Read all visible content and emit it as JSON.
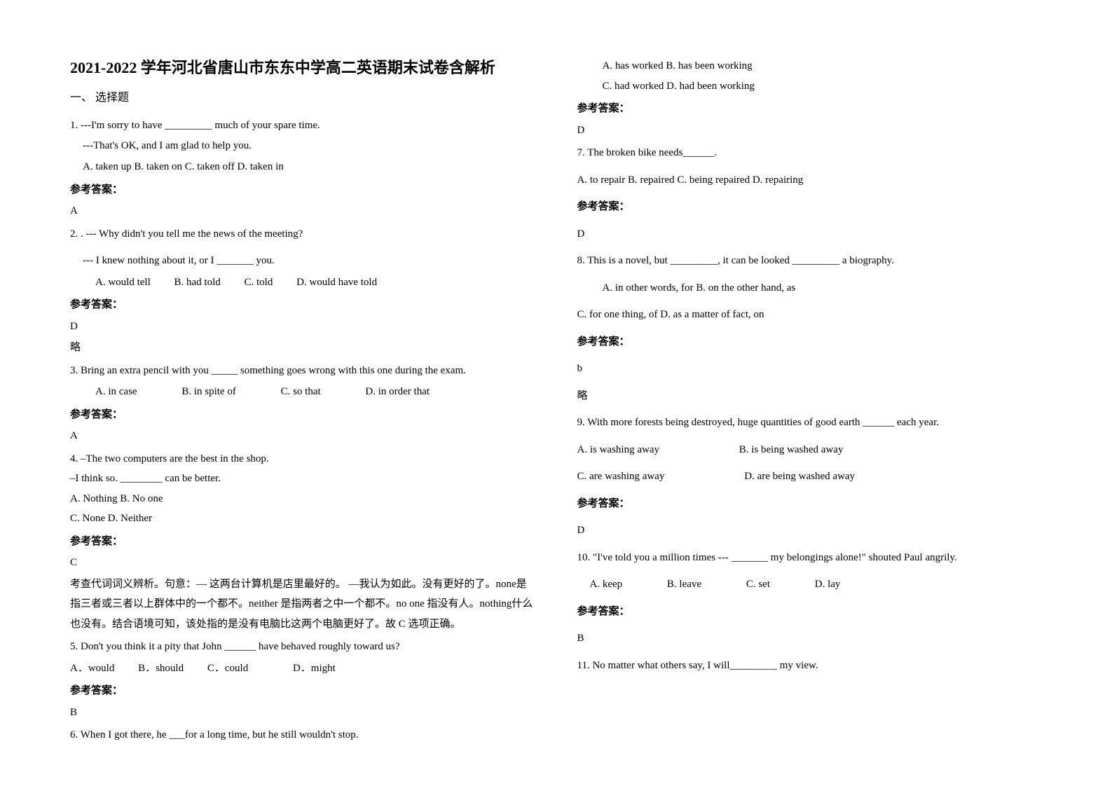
{
  "title": "2021-2022 学年河北省唐山市东东中学高二英语期末试卷含解析",
  "section_heading": "一、 选择题",
  "answer_label": "参考答案：",
  "omit": "略",
  "q1": {
    "line1": "1. ---I'm sorry to have _________ much of your spare time.",
    "line2": "---That's OK, and I am glad to help you.",
    "options": "A. taken up   B. taken on   C. taken off   D. taken in",
    "answer": "A"
  },
  "q2": {
    "line1": "2. . --- Why didn't you tell me the news of the meeting?",
    "line2": "--- I knew nothing about it, or I _______ you.",
    "optA": "A. would tell",
    "optB": "B. had told",
    "optC": "C. told",
    "optD": "D. would have told",
    "answer": "D"
  },
  "q3": {
    "line1": "3. Bring an extra pencil with you _____ something goes wrong with this one during the exam.",
    "optA": "A. in case",
    "optB": "B. in spite of",
    "optC": "C. so that",
    "optD": "D. in order that",
    "answer": "A"
  },
  "q4": {
    "line1": "4. –The two computers are the best in the shop.",
    "line2": "–I think so. ________ can be better.",
    "optsAB": "A. Nothing   B. No one",
    "optsCD": "C. None   D. Neither",
    "answer": "C",
    "explain": "考查代词词义辨析。句意：— 这两台计算机是店里最好的。    —我认为如此。没有更好的了。none是指三者或三者以上群体中的一个都不。neither 是指两者之中一个都不。no one 指没有人。nothing什么也没有。结合语境可知，该处指的是没有电脑比这两个电脑更好了。故 C 选项正确。"
  },
  "q5": {
    "line1": "5. Don't you think it a pity that John ______ have behaved roughly toward us?",
    "optA": "A．would",
    "optB": "B．should",
    "optC": "C．could",
    "optD": "D．might",
    "answer": "B"
  },
  "q6": {
    "line1": "6. When I got there, he ___for a long time, but he still wouldn't stop.",
    "optsAB": "A. has worked        B. has been working",
    "optsCD": "C. had worked        D. had been working",
    "answer": "D"
  },
  "q7": {
    "line1": "7. The broken bike needs______.",
    "options": "A. to repair   B. repaired   C. being repaired   D. repairing",
    "answer": "D"
  },
  "q8": {
    "line1": "8. This is a novel, but _________, it can be looked _________ a biography.",
    "optsAB": "A. in other words, for   B. on the other hand, as",
    "optsCD": "C. for one thing, of     D. as a matter of fact, on",
    "answer": "b"
  },
  "q9": {
    "line1": "9. With more forests being destroyed, huge quantities of good earth ______ each year.",
    "optA": "A. is washing away",
    "optB": "B. is being washed away",
    "optC": "C. are washing away",
    "optD": "D. are being washed away",
    "answer": "D"
  },
  "q10": {
    "line1": "10. \"I've told you a million times --- _______ my belongings alone!\" shouted Paul angrily.",
    "optA": "A. keep",
    "optB": "B. leave",
    "optC": "C. set",
    "optD": "D. lay",
    "answer": "B"
  },
  "q11": {
    "line1": "11. No matter what others say, I will_________ my view."
  }
}
